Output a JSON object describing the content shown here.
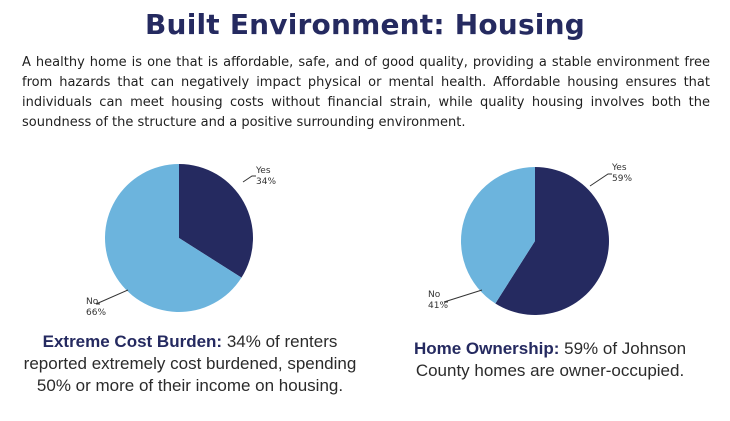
{
  "title": "Built Environment: Housing",
  "intro": "A healthy home is one that is affordable, safe, and of good quality, providing a stable environment free from hazards that can negatively impact physical or mental health. Affordable housing ensures that individuals can meet housing costs without financial strain, while quality housing involves both the soundness of the structure and a positive surrounding environment.",
  "colors": {
    "yes": "#252a60",
    "no": "#6cb4dd",
    "title": "#252a60"
  },
  "chart_data": [
    {
      "type": "pie",
      "title": "",
      "slices": [
        {
          "label": "Yes",
          "value": 34,
          "value_label": "34%",
          "color": "#252a60"
        },
        {
          "label": "No",
          "value": 66,
          "value_label": "66%",
          "color": "#6cb4dd"
        }
      ],
      "caption_bold": "Extreme Cost Burden:",
      "caption_text": " 34% of renters reported extremely cost burdened, spending 50% or more of their income on housing."
    },
    {
      "type": "pie",
      "title": "",
      "slices": [
        {
          "label": "Yes",
          "value": 59,
          "value_label": "59%",
          "color": "#252a60"
        },
        {
          "label": "No",
          "value": 41,
          "value_label": "41%",
          "color": "#6cb4dd"
        }
      ],
      "caption_bold": "Home Ownership:",
      "caption_text": " 59% of Johnson County homes are owner-occupied."
    }
  ]
}
